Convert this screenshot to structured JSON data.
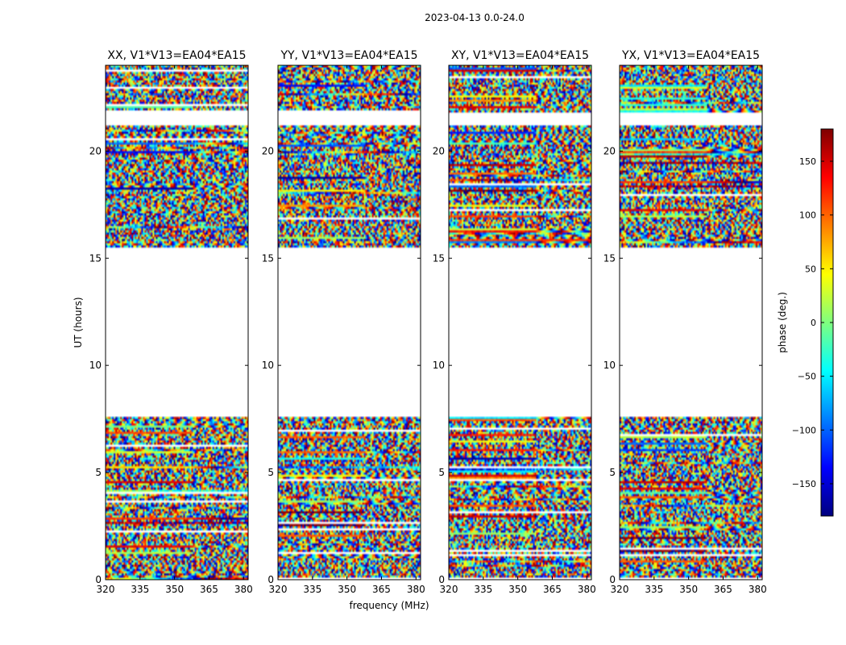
{
  "figure": {
    "suptitle": "2023-04-13 0.0-24.0",
    "xlabel": "frequency (MHz)",
    "ylabel": "UT (hours)"
  },
  "chart_data": {
    "type": "heatmap",
    "title": "2023-04-13 0.0-24.0",
    "xlabel": "frequency (MHz)",
    "ylabel": "UT (hours)",
    "xlim": [
      320,
      382
    ],
    "ylim": [
      0,
      24
    ],
    "xticks": [
      320,
      335,
      350,
      365,
      380
    ],
    "yticks": [
      0,
      5,
      10,
      15,
      20
    ],
    "panels": [
      {
        "title": "XX, V1*V13=EA04*EA15",
        "show_ytick_labels": true
      },
      {
        "title": "YY, V1*V13=EA04*EA15",
        "show_ytick_labels": true
      },
      {
        "title": "XY, V1*V13=EA04*EA15",
        "show_ytick_labels": true
      },
      {
        "title": "YX, V1*V13=EA04*EA15",
        "show_ytick_labels": true
      }
    ],
    "data_gaps_hours": [
      [
        7.6,
        14.95
      ],
      [
        15.05,
        15.5
      ],
      [
        21.2,
        21.8
      ]
    ],
    "colorbar": {
      "label": "phase (deg.)",
      "range": [
        -180,
        180
      ],
      "ticks": [
        -150,
        -100,
        -50,
        0,
        50,
        100,
        150
      ],
      "tick_labels": [
        "−150",
        "−100",
        "−50",
        "0",
        "50",
        "100",
        "150"
      ],
      "colormap": "jet",
      "colors": [
        "#00007f",
        "#0000ff",
        "#007fff",
        "#00ffff",
        "#7fff7f",
        "#ffff00",
        "#ff7f00",
        "#ff0000",
        "#7f0000"
      ]
    }
  }
}
